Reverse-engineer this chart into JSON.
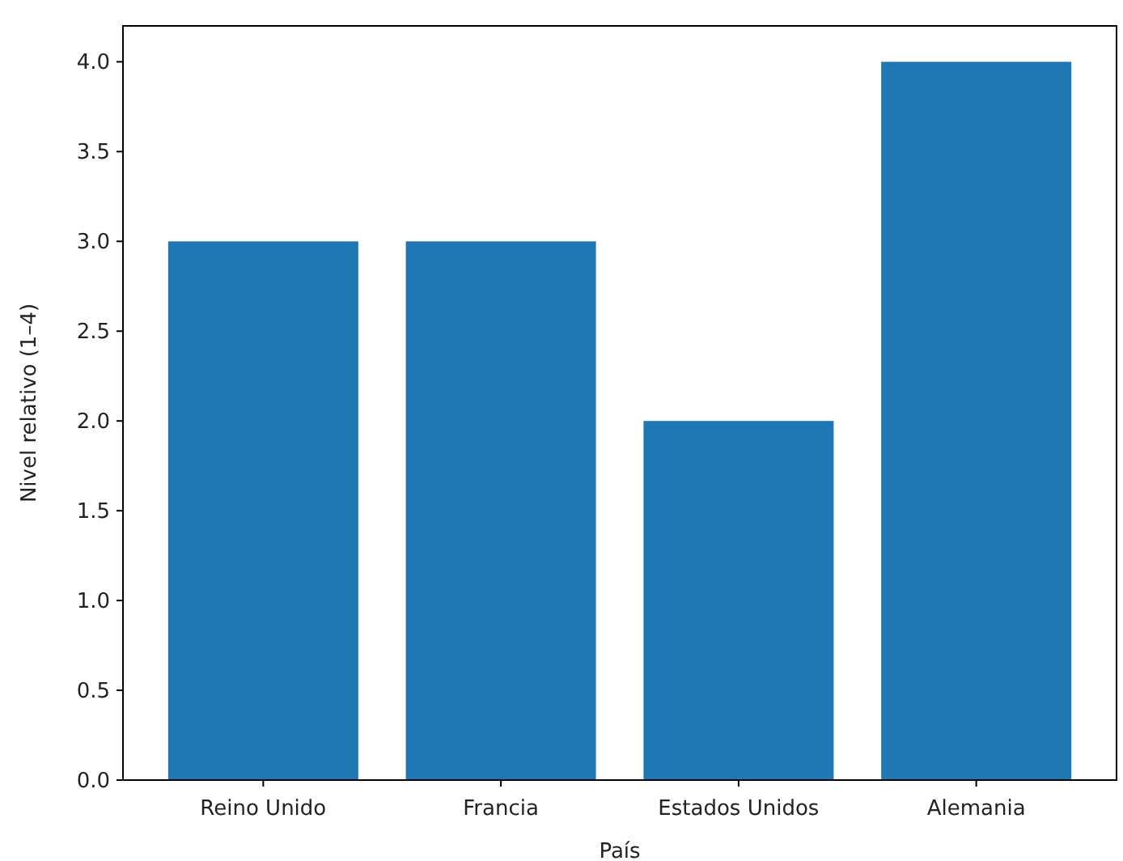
{
  "chart_data": {
    "type": "bar",
    "xlabel": "País",
    "ylabel": "Nivel relativo (1–4)",
    "categories": [
      "Reino Unido",
      "Francia",
      "Estados Unidos",
      "Alemania"
    ],
    "values": [
      3,
      3,
      2,
      4
    ],
    "color": "#1f77b4",
    "ylim": [
      0,
      4.2
    ],
    "yticks": [
      {
        "value": 0,
        "label": "0.0"
      },
      {
        "value": 0.5,
        "label": "0.5"
      },
      {
        "value": 1,
        "label": "1.0"
      },
      {
        "value": 1.5,
        "label": "1.5"
      },
      {
        "value": 2,
        "label": "2.0"
      },
      {
        "value": 2.5,
        "label": "2.5"
      },
      {
        "value": 3,
        "label": "3.0"
      },
      {
        "value": 3.5,
        "label": "3.5"
      },
      {
        "value": 4,
        "label": "4.0"
      }
    ],
    "grid": false
  }
}
